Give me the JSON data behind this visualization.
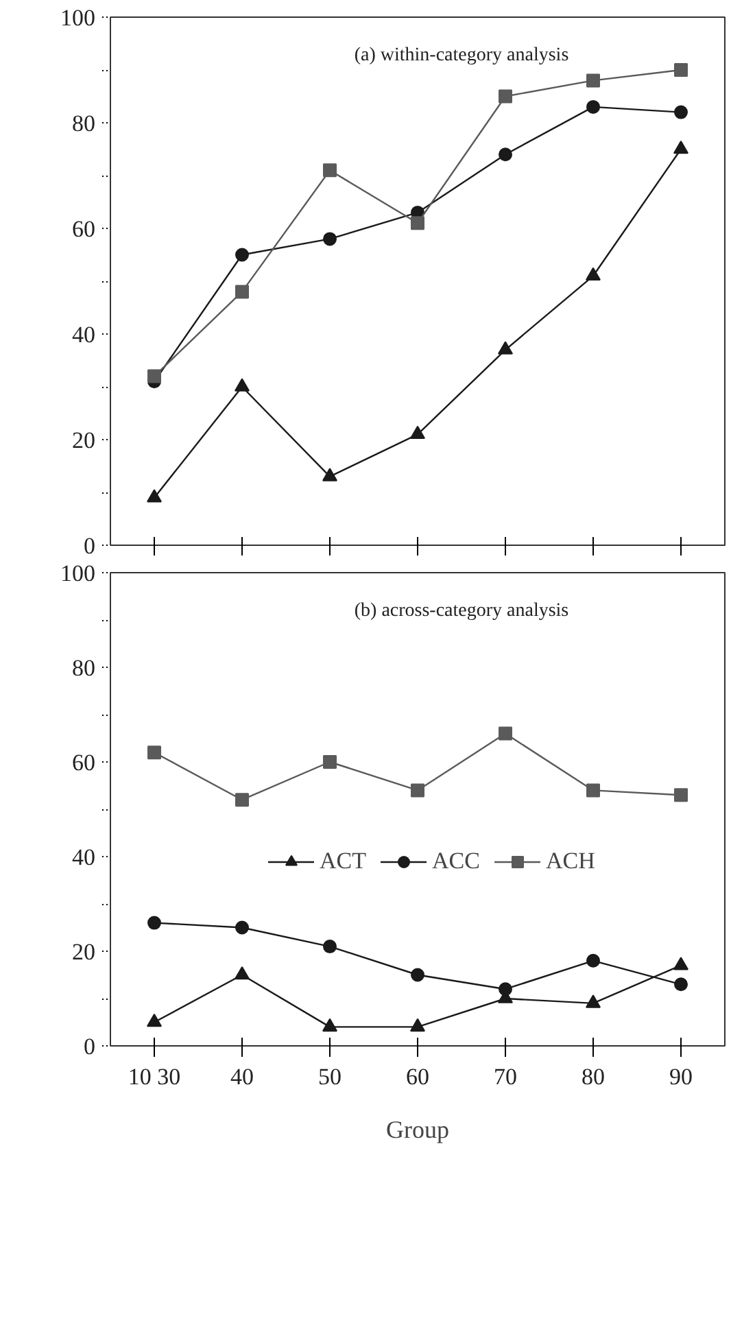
{
  "chart_data": [
    {
      "type": "line",
      "annotations": [
        "(a) within-category analysis"
      ],
      "categories": [
        null,
        null,
        null,
        null,
        null,
        null,
        null
      ],
      "ylim": [
        0,
        100
      ],
      "yticks": [
        0,
        {
          "value": 10,
          "label": null
        },
        20,
        {
          "value": 30,
          "label": null
        },
        40,
        {
          "value": 50,
          "label": null
        },
        60,
        {
          "value": 70,
          "label": null
        },
        80,
        {
          "value": 90,
          "label": null
        },
        100
      ],
      "tick_labels": "y",
      "grid": false,
      "series": [
        {
          "color": "#1a1a1a",
          "marker": "triangle",
          "values": [
            9,
            30,
            13,
            21,
            37,
            51,
            75
          ]
        },
        {
          "color": "#1a1a1a",
          "marker": "circle",
          "values": [
            31,
            55,
            58,
            63,
            74,
            83,
            82
          ]
        },
        {
          "color": "#5a5a5a",
          "marker": "square",
          "values": [
            32,
            48,
            71,
            61,
            85,
            88,
            90
          ]
        }
      ]
    },
    {
      "type": "line",
      "annotations": [
        "(b) across-category analysis"
      ],
      "xlabel": "Group",
      "categories": [
        "10 30",
        "40",
        "50",
        "60",
        "70",
        "80",
        "90"
      ],
      "ylim": [
        0,
        100
      ],
      "yticks": [
        0,
        {
          "value": 10,
          "label": null
        },
        20,
        {
          "value": 30,
          "label": null
        },
        40,
        {
          "value": 50,
          "label": null
        },
        60,
        {
          "value": 70,
          "label": null
        },
        80,
        {
          "value": 90,
          "label": null
        },
        100
      ],
      "grid": false,
      "legend": "bottom",
      "series": [
        {
          "name": "ACT",
          "color": "#1a1a1a",
          "marker": "triangle",
          "values": [
            5,
            15,
            4,
            4,
            10,
            9,
            17
          ]
        },
        {
          "name": "ACC",
          "color": "#1a1a1a",
          "marker": "circle",
          "values": [
            26,
            25,
            21,
            15,
            12,
            18,
            13
          ]
        },
        {
          "name": "ACH",
          "color": "#5a5a5a",
          "marker": "square",
          "values": [
            62,
            52,
            60,
            54,
            66,
            54,
            53
          ]
        }
      ]
    }
  ]
}
